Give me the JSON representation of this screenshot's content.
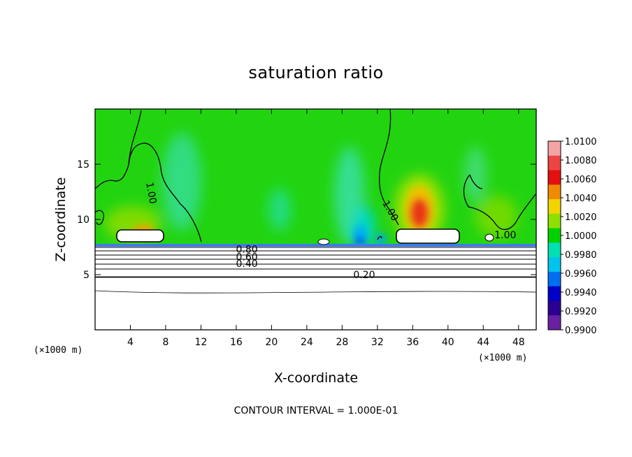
{
  "chart_data": {
    "type": "heatmap",
    "title": "saturation ratio",
    "xlabel": "X-coordinate",
    "ylabel": "Z-coordinate",
    "x_unit": "(×1000 m)",
    "z_unit": "(×1000 m)",
    "xlim": [
      0,
      50
    ],
    "ylim": [
      0,
      20
    ],
    "x_ticks": [
      "4",
      "8",
      "12",
      "16",
      "20",
      "24",
      "28",
      "32",
      "36",
      "40",
      "44",
      "48"
    ],
    "y_ticks": [
      "5",
      "10",
      "15"
    ],
    "colorbar": {
      "ticks": [
        "1.0100",
        "1.0080",
        "1.0060",
        "1.0040",
        "1.0020",
        "1.0000",
        "0.9980",
        "0.9960",
        "0.9940",
        "0.9920",
        "0.9900"
      ],
      "colors": [
        "#f4a4a4",
        "#ee4444",
        "#e41010",
        "#f08a00",
        "#f2d400",
        "#8ee000",
        "#00d200",
        "#00e0b0",
        "#00c4ee",
        "#0070f0",
        "#0000c8",
        "#2a0090",
        "#6a20a0"
      ]
    },
    "contour_interval": "CONTOUR INTERVAL = 1.000E-01",
    "contour_labels": [
      {
        "text": "1.00",
        "x": 6.4,
        "z": 12.4
      },
      {
        "text": "1.00",
        "x": 33.5,
        "z": 10.8
      },
      {
        "text": "1.00",
        "x": 46.5,
        "z": 8.6
      },
      {
        "text": "0.80",
        "x": 17.2,
        "z": 7.3
      },
      {
        "text": "0.60",
        "x": 17.2,
        "z": 6.6
      },
      {
        "text": "0.40",
        "x": 17.2,
        "z": 6.0
      },
      {
        "text": "0.20",
        "x": 30.5,
        "z": 5.0
      }
    ],
    "warm_maxima": [
      {
        "x": 37.5,
        "z": 10.5,
        "value": 1.009
      },
      {
        "x": 5.0,
        "z": 9.5,
        "value": 1.003
      }
    ],
    "cold_minima": [
      {
        "x": 30.0,
        "z": 8.3,
        "value": 0.993
      },
      {
        "x": 33.5,
        "z": 8.5,
        "value": 0.995
      }
    ]
  }
}
